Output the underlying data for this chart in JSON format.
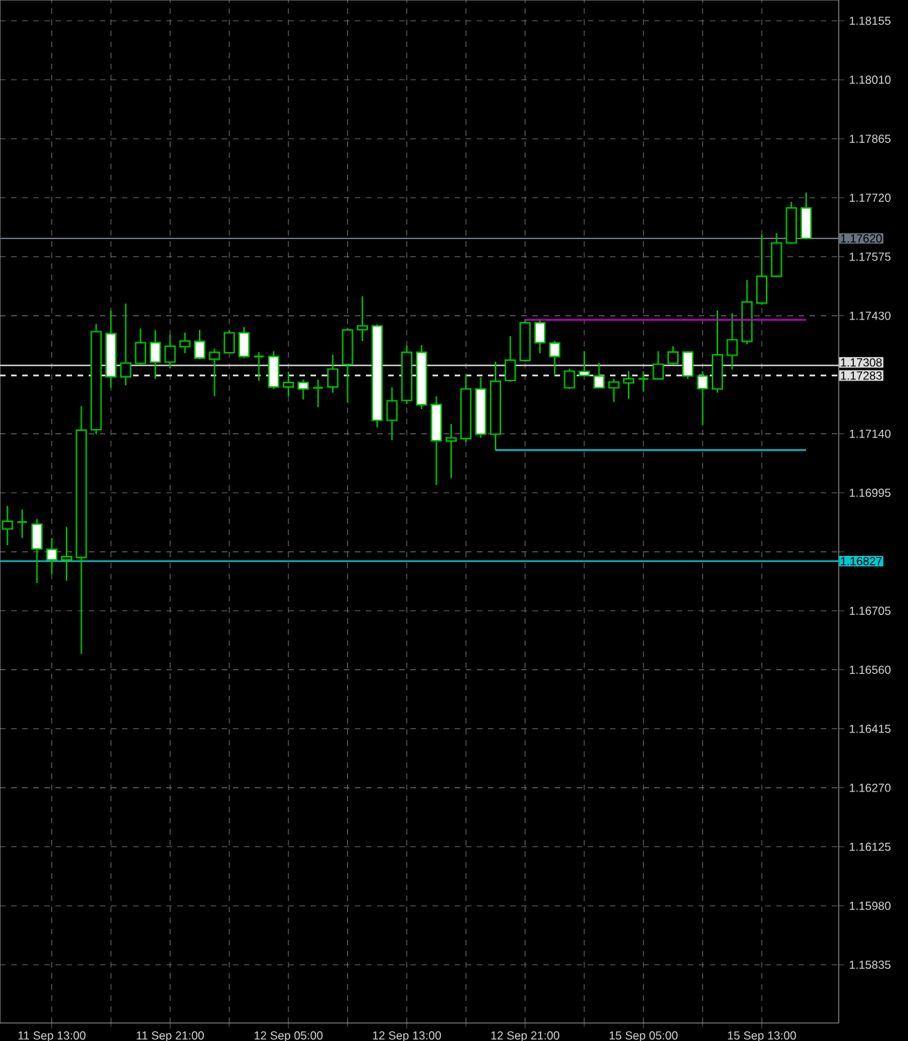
{
  "chart_data": {
    "type": "candlestick",
    "color": "#00c000",
    "grid": true,
    "categories": [
      null,
      null,
      null,
      "11 Sep 13:00",
      null,
      null,
      null,
      null,
      null,
      null,
      null,
      "11 Sep 21:00",
      null,
      null,
      null,
      null,
      null,
      null,
      null,
      "12 Sep 05:00",
      null,
      null,
      null,
      null,
      null,
      null,
      null,
      "12 Sep 13:00",
      null,
      null,
      null,
      null,
      null,
      null,
      null,
      "12 Sep 21:00",
      null,
      null,
      null,
      null,
      null,
      null,
      null,
      "15 Sep 05:00",
      null,
      null,
      null,
      null,
      null,
      null,
      null,
      "15 Sep 13:00",
      null,
      null,
      null
    ],
    "ohlc": [
      [
        1.16906,
        1.16963,
        1.16866,
        1.16925
      ],
      [
        1.16923,
        1.16954,
        1.16884,
        1.16923
      ],
      [
        1.16918,
        1.16931,
        1.16773,
        1.16857
      ],
      [
        1.16856,
        1.16884,
        1.16795,
        1.1683
      ],
      [
        1.1683,
        1.16911,
        1.16779,
        1.16838
      ],
      [
        1.16836,
        1.17208,
        1.16599,
        1.17149
      ],
      [
        1.1715,
        1.1741,
        1.17139,
        1.17391
      ],
      [
        1.17386,
        1.17443,
        1.17253,
        1.1728
      ],
      [
        1.1728,
        1.1746,
        1.17259,
        1.17314
      ],
      [
        1.17313,
        1.17399,
        1.17309,
        1.17364
      ],
      [
        1.17364,
        1.17395,
        1.17275,
        1.17316
      ],
      [
        1.17316,
        1.17384,
        1.17301,
        1.17355
      ],
      [
        1.17354,
        1.17389,
        1.17338,
        1.17368
      ],
      [
        1.17367,
        1.17395,
        1.17323,
        1.17326
      ],
      [
        1.17323,
        1.17349,
        1.17232,
        1.1734
      ],
      [
        1.17339,
        1.17395,
        1.17338,
        1.17388
      ],
      [
        1.17388,
        1.17402,
        1.17326,
        1.1733
      ],
      [
        1.1733,
        1.17341,
        1.1727,
        1.1733
      ],
      [
        1.1733,
        1.17343,
        1.1725,
        1.17255
      ],
      [
        1.17255,
        1.17293,
        1.17232,
        1.17266
      ],
      [
        1.17266,
        1.17273,
        1.17224,
        1.1725
      ],
      [
        1.17253,
        1.17273,
        1.17205,
        1.17253
      ],
      [
        1.17255,
        1.17334,
        1.17241,
        1.17299
      ],
      [
        1.1731,
        1.174,
        1.17216,
        1.17395
      ],
      [
        1.17396,
        1.17478,
        1.17368,
        1.17405
      ],
      [
        1.17405,
        1.17409,
        1.17156,
        1.17173
      ],
      [
        1.17173,
        1.17254,
        1.17124,
        1.17221
      ],
      [
        1.17222,
        1.17357,
        1.17213,
        1.1734
      ],
      [
        1.1734,
        1.17358,
        1.17201,
        1.17211
      ],
      [
        1.17212,
        1.17232,
        1.17014,
        1.17123
      ],
      [
        1.17122,
        1.17164,
        1.17031,
        1.1713
      ],
      [
        1.17128,
        1.17287,
        1.17119,
        1.1725
      ],
      [
        1.1725,
        1.17279,
        1.1713,
        1.17139
      ],
      [
        1.17139,
        1.17317,
        1.17099,
        1.17269
      ],
      [
        1.17271,
        1.1738,
        1.17268,
        1.17321
      ],
      [
        1.1732,
        1.1742,
        1.17317,
        1.17413
      ],
      [
        1.17413,
        1.1742,
        1.17338,
        1.17364
      ],
      [
        1.17363,
        1.17368,
        1.17284,
        1.1733
      ],
      [
        1.17253,
        1.173,
        1.1725,
        1.17294
      ],
      [
        1.17293,
        1.17343,
        1.17283,
        1.17283
      ],
      [
        1.17282,
        1.17314,
        1.17253,
        1.17253
      ],
      [
        1.17253,
        1.17275,
        1.17218,
        1.17267
      ],
      [
        1.17265,
        1.17294,
        1.17226,
        1.17275
      ],
      [
        1.17275,
        1.17294,
        1.17243,
        1.17275
      ],
      [
        1.17275,
        1.17343,
        1.17273,
        1.17311
      ],
      [
        1.17313,
        1.17355,
        1.17311,
        1.17341
      ],
      [
        1.17341,
        1.17343,
        1.17275,
        1.17282
      ],
      [
        1.17282,
        1.17294,
        1.17161,
        1.17251
      ],
      [
        1.1725,
        1.17443,
        1.17241,
        1.17334
      ],
      [
        1.17333,
        1.17436,
        1.17298,
        1.17371
      ],
      [
        1.17367,
        1.17518,
        1.1736,
        1.17464
      ],
      [
        1.17461,
        1.1763,
        1.17457,
        1.17527
      ],
      [
        1.17527,
        1.17633,
        1.17525,
        1.17609
      ],
      [
        1.17609,
        1.1771,
        1.17607,
        1.17695
      ],
      [
        1.17695,
        1.17733,
        1.17618,
        1.1762
      ]
    ],
    "series": [
      {
        "type": "line",
        "color": "#c000c0",
        "values": [
          null,
          null,
          null,
          null,
          null,
          null,
          null,
          null,
          null,
          null,
          null,
          null,
          null,
          null,
          null,
          null,
          null,
          null,
          null,
          null,
          null,
          null,
          null,
          null,
          null,
          null,
          null,
          null,
          null,
          null,
          null,
          null,
          null,
          null,
          null,
          1.1742,
          1.1742,
          1.1742,
          1.1742,
          1.1742,
          1.1742,
          1.1742,
          1.1742,
          1.1742,
          1.1742,
          1.1742,
          1.1742,
          1.1742,
          1.1742,
          1.1742,
          1.1742,
          1.1742,
          1.1742,
          1.1742,
          1.1742
        ]
      },
      {
        "type": "line",
        "color": "#00b0c0",
        "values": [
          null,
          null,
          null,
          null,
          null,
          null,
          null,
          null,
          null,
          null,
          null,
          null,
          null,
          null,
          null,
          null,
          null,
          null,
          null,
          null,
          null,
          null,
          null,
          null,
          null,
          null,
          null,
          null,
          null,
          null,
          null,
          null,
          null,
          1.171,
          1.171,
          1.171,
          1.171,
          1.171,
          1.171,
          1.171,
          1.171,
          1.171,
          1.171,
          1.171,
          1.171,
          1.171,
          1.171,
          1.171,
          1.171,
          1.171,
          1.171,
          1.171,
          1.171,
          1.171,
          1.171
        ]
      }
    ],
    "marker": "none",
    "ylim": [
      1.15692,
      1.18206
    ],
    "yticks": [
      {
        "value": 1.18155,
        "label": "1.18155"
      },
      {
        "value": 1.1801,
        "label": "1.18010"
      },
      {
        "value": 1.17865,
        "label": "1.17865"
      },
      {
        "value": 1.1772,
        "label": "1.17720"
      },
      {
        "value": 1.17575,
        "label": "1.17575"
      },
      {
        "value": 1.1743,
        "label": "1.17430"
      },
      {
        "value": 1.17285,
        "label": null
      },
      {
        "value": 1.1714,
        "label": "1.17140"
      },
      {
        "value": 1.16995,
        "label": "1.16995"
      },
      {
        "value": 1.1685,
        "label": null
      },
      {
        "value": 1.16705,
        "label": "1.16705"
      },
      {
        "value": 1.1656,
        "label": "1.16560"
      },
      {
        "value": 1.16415,
        "label": "1.16415"
      },
      {
        "value": 1.1627,
        "label": "1.16270"
      },
      {
        "value": 1.16125,
        "label": "1.16125"
      },
      {
        "value": 1.1598,
        "label": "1.15980"
      },
      {
        "value": 1.15835,
        "label": "1.15835"
      }
    ],
    "ref_lines": [
      {
        "axis": "y",
        "value": 1.1762,
        "label": "1.17620",
        "color": "#6a7580",
        "line_style": "solid"
      },
      {
        "axis": "y",
        "value": 1.17308,
        "label": "1.17308",
        "color": "#e0e0e0",
        "line_style": "solid"
      },
      {
        "axis": "y",
        "value": 1.17283,
        "label": "1.17283",
        "color": "#e0e0e0",
        "line_style": "dashed"
      },
      {
        "axis": "y",
        "value": 1.16827,
        "label": "1.16827",
        "color": "#00c8d0",
        "line_style": "solid"
      }
    ]
  }
}
